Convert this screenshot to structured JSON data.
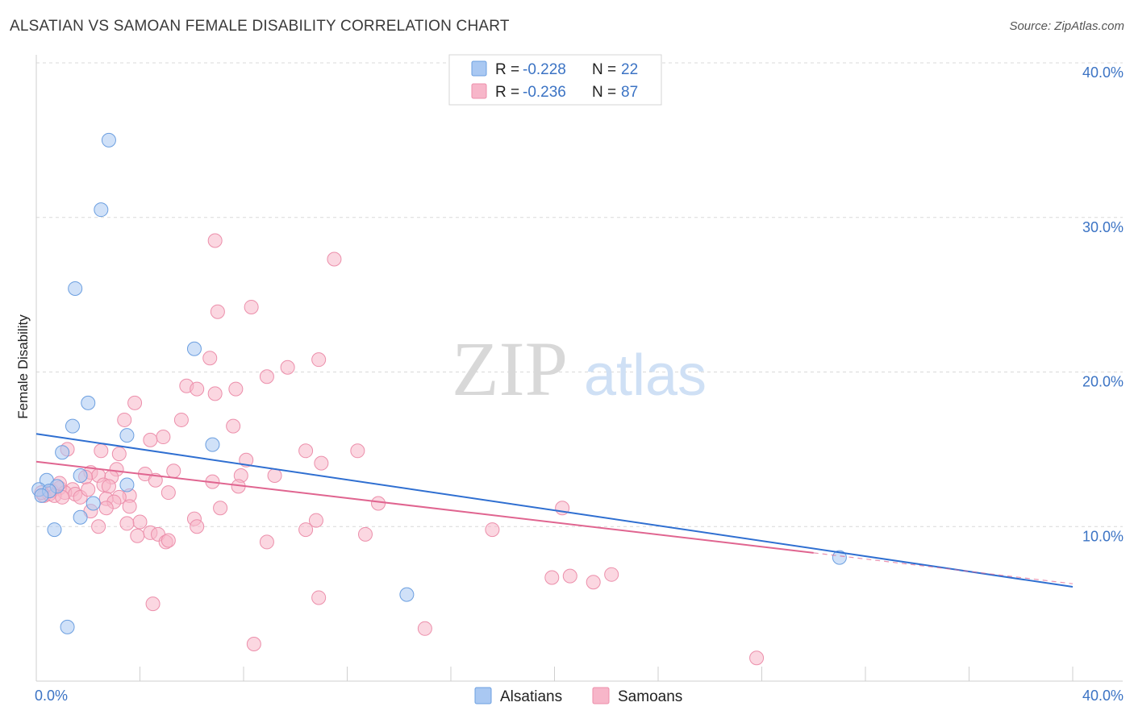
{
  "header": {
    "title": "ALSATIAN VS SAMOAN FEMALE DISABILITY CORRELATION CHART",
    "source": "Source: ZipAtlas.com"
  },
  "watermark": {
    "zip": "ZIP",
    "atlas": "atlas"
  },
  "colors": {
    "alsatians_fill": "#a9c8f2",
    "alsatians_stroke": "#6c9fe0",
    "alsatians_line": "#2f6fd1",
    "samoans_fill": "#f7b6c9",
    "samoans_stroke": "#ec8fab",
    "samoans_line": "#e06590",
    "tick_text": "#3b73c4",
    "grid": "#d9d9d9"
  },
  "chart_data": {
    "type": "scatter",
    "title": "ALSATIAN VS SAMOAN FEMALE DISABILITY CORRELATION CHART",
    "xlabel": "",
    "ylabel": "Female Disability",
    "xlim": [
      0,
      40
    ],
    "ylim": [
      0,
      40
    ],
    "x_tick_labels": [
      "0.0%",
      "40.0%"
    ],
    "y_ticks": [
      10,
      20,
      30,
      40
    ],
    "y_tick_labels": [
      "10.0%",
      "20.0%",
      "30.0%",
      "40.0%"
    ],
    "grid": true,
    "legend_position": "top-center",
    "legend": [
      {
        "name": "Alsatians",
        "r_label": "R =",
        "r_value": "-0.228",
        "n_label": "N =",
        "n_value": "22"
      },
      {
        "name": "Samoans",
        "r_label": "R =",
        "r_value": "-0.236",
        "n_label": "N =",
        "n_value": "87"
      }
    ],
    "series": [
      {
        "name": "Alsatians",
        "points": [
          [
            2.8,
            35.0
          ],
          [
            2.5,
            30.5
          ],
          [
            1.5,
            25.4
          ],
          [
            6.1,
            21.5
          ],
          [
            2.0,
            18.0
          ],
          [
            1.4,
            16.5
          ],
          [
            3.5,
            15.9
          ],
          [
            6.8,
            15.3
          ],
          [
            1.0,
            14.8
          ],
          [
            0.4,
            13.0
          ],
          [
            1.7,
            13.3
          ],
          [
            3.5,
            12.7
          ],
          [
            0.1,
            12.4
          ],
          [
            0.8,
            12.6
          ],
          [
            0.5,
            12.3
          ],
          [
            0.2,
            12.0
          ],
          [
            2.2,
            11.5
          ],
          [
            1.7,
            10.6
          ],
          [
            0.7,
            9.8
          ],
          [
            14.3,
            5.6
          ],
          [
            1.2,
            3.5
          ],
          [
            31.0,
            8.0
          ]
        ],
        "trend": {
          "x": [
            0,
            40
          ],
          "y": [
            16.0,
            6.1
          ]
        }
      },
      {
        "name": "Samoans",
        "points": [
          [
            6.9,
            28.5
          ],
          [
            11.5,
            27.3
          ],
          [
            8.3,
            24.2
          ],
          [
            7.0,
            23.9
          ],
          [
            10.9,
            20.8
          ],
          [
            6.7,
            20.9
          ],
          [
            9.7,
            20.3
          ],
          [
            8.9,
            19.7
          ],
          [
            5.8,
            19.1
          ],
          [
            6.2,
            18.9
          ],
          [
            7.7,
            18.9
          ],
          [
            6.9,
            18.6
          ],
          [
            3.8,
            18.0
          ],
          [
            3.4,
            16.9
          ],
          [
            5.6,
            16.9
          ],
          [
            7.6,
            16.5
          ],
          [
            4.9,
            15.8
          ],
          [
            4.4,
            15.6
          ],
          [
            1.2,
            15.0
          ],
          [
            2.5,
            14.9
          ],
          [
            3.2,
            14.7
          ],
          [
            10.4,
            14.9
          ],
          [
            12.4,
            14.9
          ],
          [
            11.0,
            14.1
          ],
          [
            8.1,
            14.3
          ],
          [
            3.1,
            13.7
          ],
          [
            5.3,
            13.6
          ],
          [
            4.2,
            13.4
          ],
          [
            2.9,
            13.2
          ],
          [
            2.1,
            13.5
          ],
          [
            2.4,
            13.3
          ],
          [
            7.9,
            13.3
          ],
          [
            9.2,
            13.3
          ],
          [
            4.6,
            13.0
          ],
          [
            6.8,
            12.9
          ],
          [
            1.9,
            13.2
          ],
          [
            2.6,
            12.7
          ],
          [
            2.8,
            12.6
          ],
          [
            7.8,
            12.6
          ],
          [
            1.4,
            12.4
          ],
          [
            0.6,
            12.3
          ],
          [
            0.9,
            12.5
          ],
          [
            1.1,
            12.2
          ],
          [
            1.5,
            12.1
          ],
          [
            0.3,
            12.0
          ],
          [
            0.5,
            12.1
          ],
          [
            0.7,
            12.0
          ],
          [
            1.0,
            11.9
          ],
          [
            0.2,
            12.2
          ],
          [
            1.7,
            11.9
          ],
          [
            5.1,
            12.2
          ],
          [
            3.6,
            12.0
          ],
          [
            3.2,
            11.9
          ],
          [
            2.7,
            11.8
          ],
          [
            3.0,
            11.6
          ],
          [
            3.6,
            11.3
          ],
          [
            2.7,
            11.2
          ],
          [
            7.1,
            11.2
          ],
          [
            13.2,
            11.5
          ],
          [
            20.3,
            11.2
          ],
          [
            2.1,
            11.0
          ],
          [
            6.1,
            10.5
          ],
          [
            10.8,
            10.4
          ],
          [
            4.0,
            10.3
          ],
          [
            3.5,
            10.2
          ],
          [
            2.4,
            10.0
          ],
          [
            6.2,
            10.0
          ],
          [
            10.4,
            9.8
          ],
          [
            17.6,
            9.8
          ],
          [
            4.4,
            9.6
          ],
          [
            3.9,
            9.4
          ],
          [
            4.7,
            9.5
          ],
          [
            12.7,
            9.5
          ],
          [
            5.0,
            9.0
          ],
          [
            8.9,
            9.0
          ],
          [
            5.1,
            9.1
          ],
          [
            19.9,
            6.7
          ],
          [
            20.6,
            6.8
          ],
          [
            21.5,
            6.4
          ],
          [
            22.2,
            6.9
          ],
          [
            10.9,
            5.4
          ],
          [
            4.5,
            5.0
          ],
          [
            15.0,
            3.4
          ],
          [
            8.4,
            2.4
          ],
          [
            27.8,
            1.5
          ],
          [
            0.9,
            12.8
          ],
          [
            2.0,
            12.4
          ]
        ],
        "trend": {
          "x": [
            0,
            30.0
          ],
          "y": [
            14.2,
            8.3
          ]
        },
        "trend_extension": {
          "x": [
            30.0,
            40
          ],
          "y": [
            8.3,
            6.3
          ]
        }
      }
    ]
  }
}
